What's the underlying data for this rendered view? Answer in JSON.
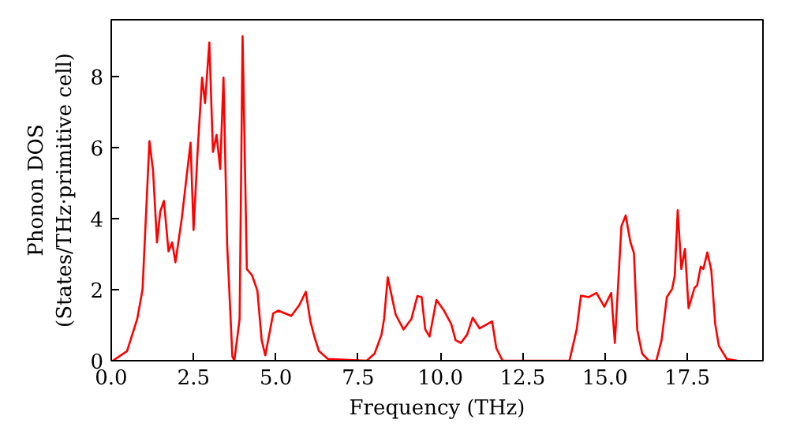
{
  "chart_data": {
    "type": "line",
    "xlabel": "Frequency (THz)",
    "ylabel": "Phonon DOS\n(States/THz·primitive cell)",
    "xlim": [
      0,
      19.8
    ],
    "ylim": [
      0,
      9.6
    ],
    "xticks": [
      {
        "value": 0,
        "label": "0.0"
      },
      {
        "value": 2.5,
        "label": "2.5"
      },
      {
        "value": 5,
        "label": "5.0"
      },
      {
        "value": 7.5,
        "label": "7.5"
      },
      {
        "value": 10,
        "label": "10.0"
      },
      {
        "value": 12.5,
        "label": "12.5"
      },
      {
        "value": 15,
        "label": "15.0"
      },
      {
        "value": 17.5,
        "label": "17.5"
      }
    ],
    "yticks": [
      0,
      2,
      4,
      6,
      8
    ],
    "grid": false,
    "series": [
      {
        "color": "#ff0000",
        "x": [
          0.05,
          0.48,
          0.79,
          0.95,
          1.16,
          1.27,
          1.39,
          1.49,
          1.6,
          1.74,
          1.85,
          1.95,
          2.14,
          2.3,
          2.41,
          2.5,
          2.63,
          2.76,
          2.85,
          2.98,
          3.09,
          3.2,
          3.31,
          3.41,
          3.52,
          3.68,
          3.74,
          3.9,
          3.99,
          4.12,
          4.28,
          4.44,
          4.57,
          4.68,
          4.92,
          5.07,
          5.47,
          5.71,
          5.91,
          6.05,
          6.18,
          6.31,
          6.58,
          7.76,
          8.0,
          8.21,
          8.29,
          8.4,
          8.64,
          8.88,
          9.12,
          9.3,
          9.43,
          9.54,
          9.67,
          9.88,
          10.11,
          10.33,
          10.46,
          10.62,
          10.81,
          10.98,
          11.19,
          11.57,
          11.7,
          11.89,
          13.92,
          14.14,
          14.27,
          14.51,
          14.74,
          14.98,
          15.19,
          15.3,
          15.5,
          15.63,
          15.77,
          15.88,
          15.98,
          16.13,
          16.33,
          16.56,
          16.72,
          16.88,
          17.04,
          17.12,
          17.21,
          17.32,
          17.43,
          17.54,
          17.72,
          17.8,
          17.91,
          17.99,
          18.11,
          18.23,
          18.35,
          18.46,
          18.7,
          19.02
        ],
        "values": [
          0,
          0.27,
          1.18,
          2.0,
          6.18,
          5.35,
          3.33,
          4.2,
          4.5,
          3.08,
          3.33,
          2.77,
          3.98,
          5.27,
          6.14,
          3.68,
          6.0,
          7.97,
          7.25,
          8.96,
          5.88,
          6.36,
          5.4,
          7.97,
          3.3,
          0.12,
          0,
          1.18,
          9.14,
          2.58,
          2.4,
          1.97,
          0.58,
          0.15,
          1.33,
          1.41,
          1.26,
          1.56,
          1.94,
          1.11,
          0.65,
          0.27,
          0.05,
          0,
          0.2,
          0.73,
          1.18,
          2.35,
          1.3,
          0.88,
          1.18,
          1.82,
          1.79,
          0.88,
          0.68,
          1.71,
          1.41,
          1.03,
          0.58,
          0.5,
          0.73,
          1.21,
          0.91,
          1.11,
          0.35,
          0,
          0,
          0.88,
          1.83,
          1.79,
          1.91,
          1.52,
          1.91,
          0.5,
          3.79,
          4.09,
          3.35,
          3.03,
          0.88,
          0.2,
          0,
          0,
          0.58,
          1.79,
          2.02,
          2.39,
          4.24,
          2.58,
          3.15,
          1.48,
          2.05,
          2.12,
          2.65,
          2.58,
          3.05,
          2.55,
          1.03,
          0.42,
          0.05,
          0
        ]
      }
    ]
  }
}
